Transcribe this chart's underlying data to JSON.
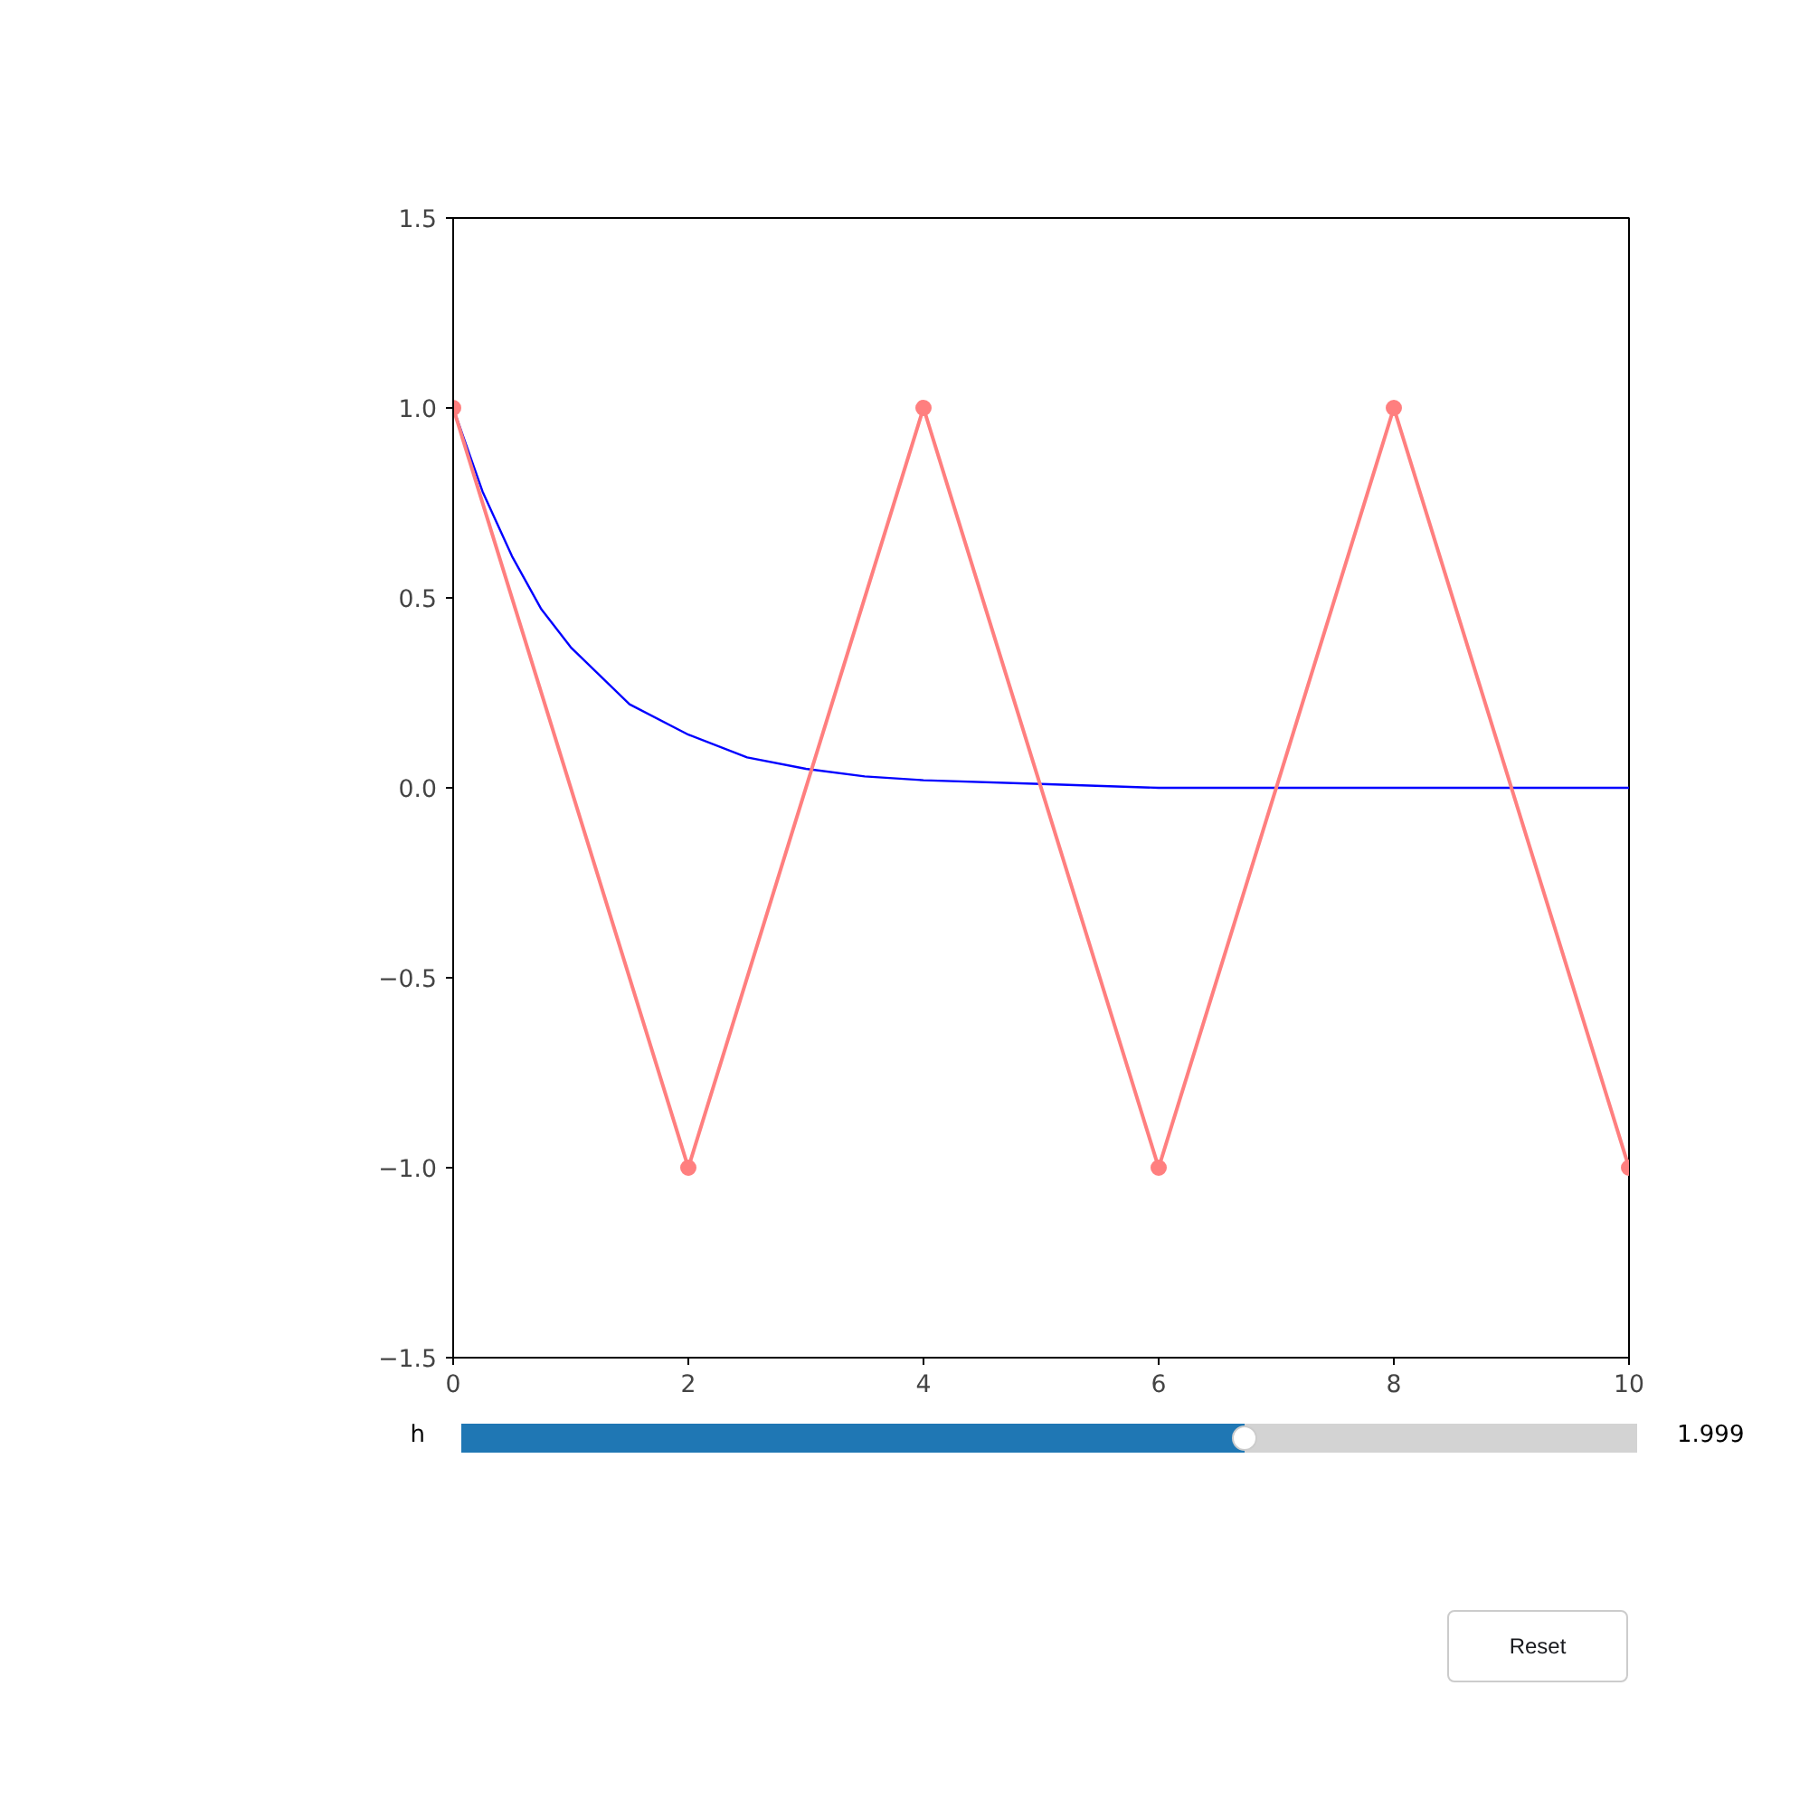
{
  "chart_data": {
    "type": "line",
    "xlim": [
      0,
      10
    ],
    "ylim": [
      -1.5,
      1.5
    ],
    "xticks": [
      0,
      2,
      4,
      6,
      8,
      10
    ],
    "yticks": [
      {
        "value": -1.5,
        "label": "−1.5"
      },
      {
        "value": -1.0,
        "label": "−1.0"
      },
      {
        "value": -0.5,
        "label": "−0.5"
      },
      {
        "value": 0,
        "label": "0.0"
      },
      {
        "value": 0.5,
        "label": "0.5"
      },
      {
        "value": 1.0,
        "label": "1.0"
      },
      {
        "value": 1.5,
        "label": "1.5"
      }
    ],
    "grid": false,
    "series": [
      {
        "color": "#0000ff",
        "marker": "none",
        "x": [
          0,
          0.25,
          0.5,
          0.75,
          1,
          1.5,
          2,
          2.5,
          3,
          3.5,
          4,
          5,
          6,
          7,
          8,
          9,
          10
        ],
        "values": [
          1,
          0.78,
          0.61,
          0.47,
          0.37,
          0.22,
          0.14,
          0.08,
          0.05,
          0.03,
          0.02,
          0.01,
          0,
          0,
          0,
          0,
          0
        ]
      },
      {
        "color": "#ff7f7f",
        "marker": "circle",
        "x": [
          0,
          2,
          4,
          6,
          8,
          10
        ],
        "values": [
          1,
          -1,
          1,
          -1,
          1,
          -1
        ]
      }
    ],
    "annotations": [
      "h",
      "1.999",
      "Reset"
    ]
  }
}
